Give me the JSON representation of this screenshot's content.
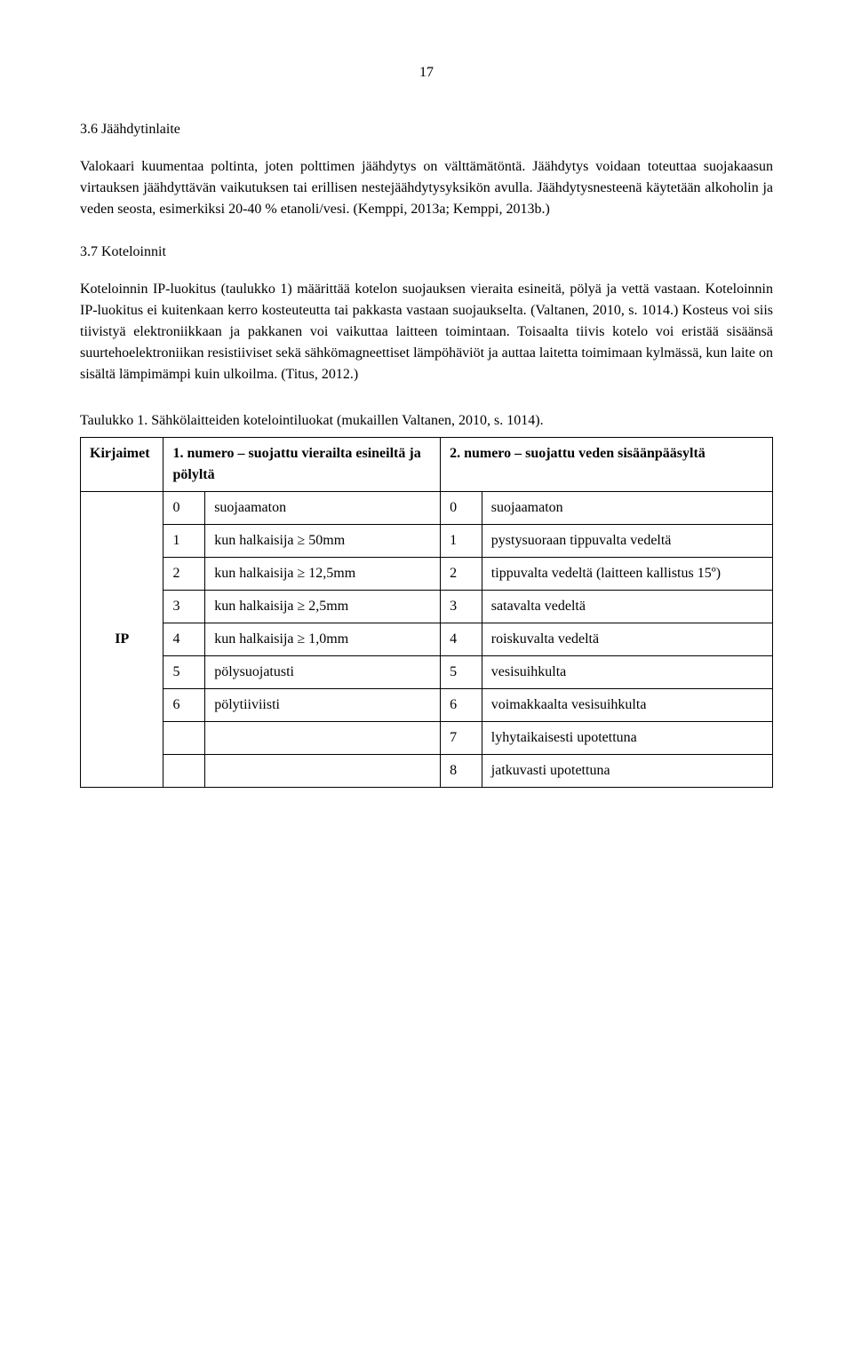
{
  "page_number": "17",
  "section1": {
    "heading": "3.6 Jäähdytinlaite",
    "para": "Valokaari kuumentaa poltinta, joten polttimen jäähdytys on välttämätöntä. Jäähdytys voidaan toteuttaa suojakaasun virtauksen jäähdyttävän vaikutuksen tai erillisen nestejäähdytysyksikön avulla. Jäähdytysnesteenä käytetään alkoholin ja veden seosta, esimerkiksi 20-40 % etanoli/vesi. (Kemppi, 2013a; Kemppi, 2013b.)"
  },
  "section2": {
    "heading": "3.7 Koteloinnit",
    "para1": "Koteloinnin IP-luokitus (taulukko 1) määrittää kotelon suojauksen vieraita esineitä, pölyä ja vettä vastaan. Koteloinnin IP-luokitus ei kuitenkaan kerro kosteuteutta tai pakkasta vastaan suojaukselta. (Valtanen, 2010, s. 1014.) Kosteus voi siis tiivistyä elektroniikkaan ja pakkanen voi vaikuttaa laitteen toimintaan. Toisaalta tiivis kotelo voi eristää sisäänsä suurtehoelektroniikan resistiiviset sekä sähkömagneettiset lämpöhäviöt ja auttaa laitetta toimimaan kylmässä, kun laite on sisältä lämpimämpi kuin ulkoilma. (Titus, 2012.)"
  },
  "table": {
    "caption": "Taulukko 1. Sähkölaitteiden kotelointiluokat (mukaillen Valtanen, 2010, s. 1014).",
    "headers": {
      "kirjaimet": "Kirjaimet",
      "num1": "1.",
      "desc1": "numero – suojattu vierailta esineiltä ja pölyltä",
      "num2": "2.",
      "desc2": "numero – suojattu veden sisäänpääsyltä"
    },
    "ip_label": "IP",
    "rows": [
      {
        "n1": "0",
        "d1": "suojaamaton",
        "n2": "0",
        "d2": "suojaamaton"
      },
      {
        "n1": "1",
        "d1": "kun halkaisija ≥ 50mm",
        "n2": "1",
        "d2": "pystysuoraan tippuvalta vedeltä"
      },
      {
        "n1": "2",
        "d1": "kun halkaisija ≥ 12,5mm",
        "n2": "2",
        "d2": "tippuvalta vedeltä (laitteen kallistus 15º)"
      },
      {
        "n1": "3",
        "d1": "kun halkaisija ≥ 2,5mm",
        "n2": "3",
        "d2": "satavalta vedeltä"
      },
      {
        "n1": "4",
        "d1": "kun halkaisija ≥ 1,0mm",
        "n2": "4",
        "d2": "roiskuvalta vedeltä"
      },
      {
        "n1": "5",
        "d1": "pölysuojatusti",
        "n2": "5",
        "d2": "vesisuihkulta"
      },
      {
        "n1": "6",
        "d1": "pölytiiviisti",
        "n2": "6",
        "d2": "voimakkaalta vesisuihkulta"
      },
      {
        "n1": "",
        "d1": "",
        "n2": "7",
        "d2": "lyhytaikaisesti upotettuna"
      },
      {
        "n1": "",
        "d1": "",
        "n2": "8",
        "d2": "jatkuvasti upotettuna"
      }
    ]
  }
}
